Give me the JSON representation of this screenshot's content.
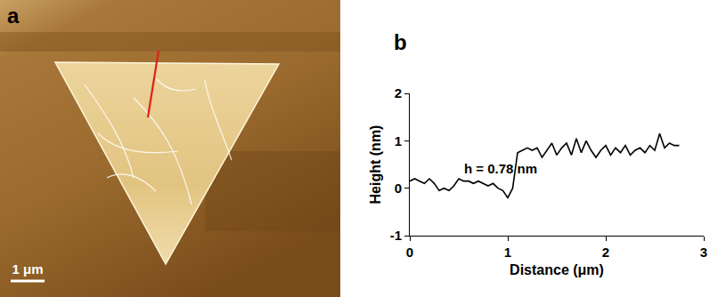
{
  "panel_a": {
    "label": "a",
    "scale_bar_label": "1 μm"
  },
  "chart_data": {
    "label": "b",
    "type": "line",
    "x_label": "Distance (μm)",
    "y_label": "Height (nm)",
    "annotation": "h = 0.78 nm",
    "x": [
      0,
      0.05,
      0.1,
      0.15,
      0.2,
      0.25,
      0.3,
      0.35,
      0.4,
      0.45,
      0.5,
      0.55,
      0.6,
      0.65,
      0.7,
      0.75,
      0.8,
      0.85,
      0.9,
      0.95,
      1.0,
      1.05,
      1.1,
      1.15,
      1.2,
      1.25,
      1.3,
      1.35,
      1.4,
      1.45,
      1.5,
      1.55,
      1.6,
      1.65,
      1.7,
      1.75,
      1.8,
      1.85,
      1.9,
      1.95,
      2.0,
      2.05,
      2.1,
      2.15,
      2.2,
      2.25,
      2.3,
      2.35,
      2.4,
      2.45,
      2.5,
      2.55,
      2.6,
      2.65,
      2.7,
      2.75
    ],
    "values": [
      0.15,
      0.2,
      0.15,
      0.1,
      0.2,
      0.1,
      -0.05,
      0.0,
      -0.05,
      0.05,
      0.2,
      0.15,
      0.15,
      0.1,
      0.15,
      0.1,
      0.05,
      0.1,
      0.0,
      -0.05,
      -0.2,
      0.0,
      0.75,
      0.8,
      0.85,
      0.8,
      0.85,
      0.65,
      0.8,
      0.95,
      0.7,
      0.85,
      0.95,
      0.7,
      1.05,
      0.75,
      1.0,
      0.8,
      0.65,
      0.8,
      0.9,
      0.7,
      0.85,
      0.75,
      0.9,
      0.7,
      0.8,
      0.85,
      0.75,
      0.9,
      0.8,
      1.15,
      0.85,
      0.95,
      0.9,
      0.9
    ],
    "color": "#000000",
    "xlim": [
      0,
      3
    ],
    "xticks": [
      0,
      1,
      2,
      3
    ],
    "ylim": [
      -1,
      2
    ],
    "yticks": [
      -1,
      0,
      1,
      2
    ],
    "grid": false
  }
}
